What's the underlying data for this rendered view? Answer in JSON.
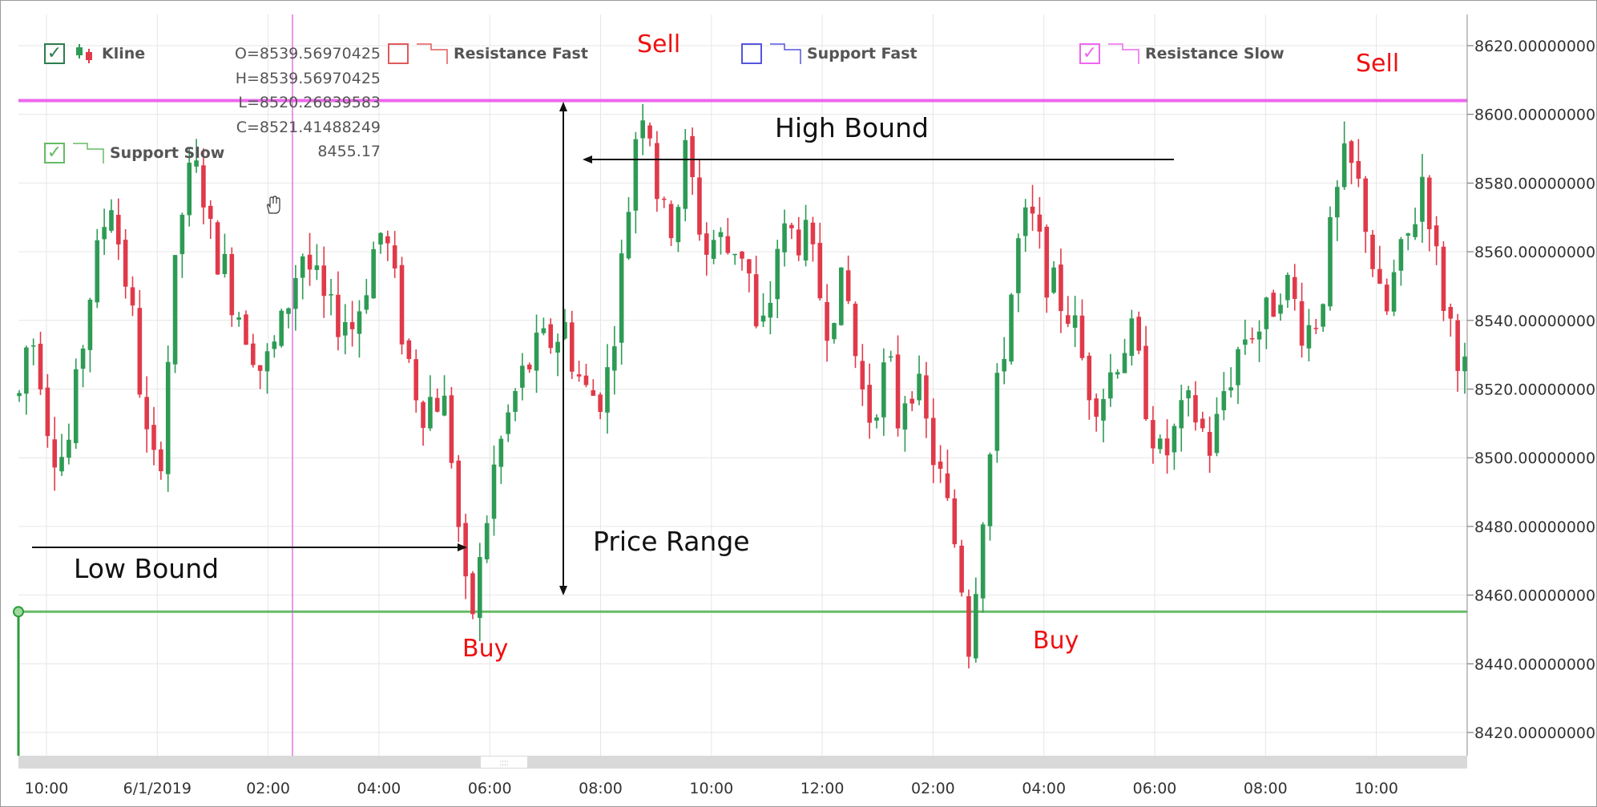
{
  "legend": {
    "kline": {
      "label": "Kline",
      "checked": true,
      "color": "#2e8b57"
    },
    "resistance_fast": {
      "label": "Resistance Fast",
      "checked": false,
      "color": "#e05a5a"
    },
    "support_fast": {
      "label": "Support Fast",
      "checked": false,
      "color": "#5555dd"
    },
    "resistance_slow": {
      "label": "Resistance Slow",
      "checked": true,
      "color": "#ee66ee"
    },
    "support_slow": {
      "label": "Support Slow",
      "checked": true,
      "color": "#66bb66"
    }
  },
  "ohlc": {
    "open": "O=8539.56970425",
    "high": "H=8539.56970425",
    "low": "L=8520.26839583",
    "close": "C=8521.41488249",
    "support_value": "8455.17"
  },
  "annotations": {
    "sell_1": "Sell",
    "sell_2": "Sell",
    "buy_1": "Buy",
    "buy_2": "Buy",
    "high_bound": "High Bound",
    "low_bound": "Low Bound",
    "price_range": "Price Range"
  },
  "colors": {
    "up": "#2e9b55",
    "down": "#e03a4a",
    "resistance_line": "#ee66ee",
    "support_line": "#66bb66",
    "crosshair": "#d855d8",
    "annotation_red": "#ee1111"
  },
  "chart_data": {
    "type": "candlestick",
    "title": "",
    "y_axis": {
      "range": [
        8413,
        8625
      ],
      "ticks": [
        "8420.00000000",
        "8440.00000000",
        "8460.00000000",
        "8480.00000000",
        "8500.00000000",
        "8520.00000000",
        "8540.00000000",
        "8560.00000000",
        "8580.00000000",
        "8600.00000000",
        "8620.00000000"
      ]
    },
    "x_axis": {
      "ticks": [
        "10:00",
        "6/1/2019",
        "02:00",
        "04:00",
        "06:00",
        "08:00",
        "10:00",
        "12:00",
        "02:00",
        "04:00",
        "06:00",
        "08:00",
        "10:00"
      ]
    },
    "grid": true,
    "resistance_slow_level": 8604,
    "support_slow_level": 8455.17,
    "close_path": [
      8518,
      8538,
      8528,
      8507,
      8500,
      8505,
      8528,
      8548,
      8562,
      8578,
      8560,
      8545,
      8520,
      8495,
      8502,
      8540,
      8570,
      8583,
      8582,
      8563,
      8558,
      8548,
      8541,
      8534,
      8525,
      8530,
      8538,
      8551,
      8560,
      8553,
      8545,
      8540,
      8542,
      8538,
      8548,
      8560,
      8567,
      8552,
      8535,
      8522,
      8515,
      8518,
      8516,
      8497,
      8460,
      8455,
      8478,
      8497,
      8508,
      8518,
      8525,
      8530,
      8533,
      8535,
      8538,
      8526,
      8519,
      8518,
      8520,
      8542,
      8566,
      8595,
      8607,
      8580,
      8566,
      8572,
      8590,
      8572,
      8560,
      8565,
      8560,
      8563,
      8558,
      8533,
      8540,
      8562,
      8565,
      8565,
      8562,
      8550,
      8540,
      8550,
      8545,
      8524,
      8512,
      8520,
      8528,
      8510,
      8525,
      8518,
      8505,
      8495,
      8482,
      8470,
      8445,
      8478,
      8500,
      8525,
      8545,
      8565,
      8570,
      8560,
      8550,
      8546,
      8542,
      8530,
      8520,
      8518,
      8525,
      8533,
      8535,
      8523,
      8510,
      8498,
      8505,
      8511,
      8515,
      8508,
      8502,
      8518,
      8526,
      8535,
      8538,
      8538,
      8545,
      8553,
      8546,
      8538,
      8538,
      8550,
      8570,
      8585,
      8583,
      8573,
      8555,
      8538,
      8552,
      8560,
      8570,
      8585,
      8560,
      8545,
      8535,
      8525
    ]
  }
}
